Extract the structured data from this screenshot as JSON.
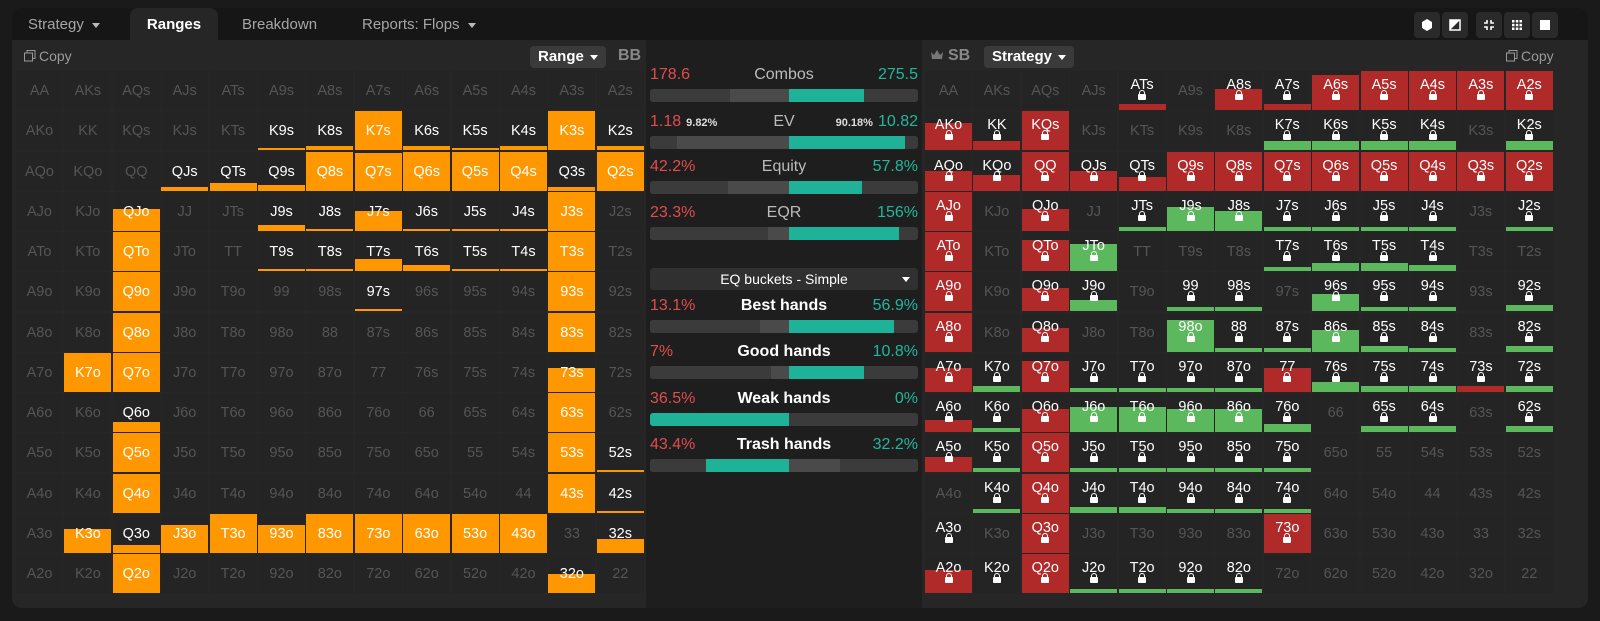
{
  "tabs": [
    {
      "label": "Strategy",
      "dropdown": true,
      "active": false
    },
    {
      "label": "Ranges",
      "dropdown": false,
      "active": true
    },
    {
      "label": "Breakdown",
      "dropdown": false,
      "active": false
    },
    {
      "label": "Reports: Flops",
      "dropdown": true,
      "active": false
    }
  ],
  "toolbar_icons": [
    "cube-icon",
    "half-square-icon",
    "compress-icon",
    "grid-icon",
    "square-icon"
  ],
  "colors": {
    "orange": "#ff9800",
    "red": "#b12a2a",
    "green": "#5cb85c",
    "teal": "#1eb398",
    "negative": "#e14d4d",
    "positive": "#22b79c"
  },
  "left_panel": {
    "copy_label": "Copy",
    "range_dropdown": "Range",
    "player": "BB",
    "hands": [
      [
        "AA",
        "AKs",
        "AQs",
        "AJs",
        "ATs",
        "A9s",
        "A8s",
        "A7s",
        "A6s",
        "A5s",
        "A4s",
        "A3s",
        "A2s"
      ],
      [
        "AKo",
        "KK",
        "KQs",
        "KJs",
        "KTs",
        "K9s",
        "K8s",
        "K7s",
        "K6s",
        "K5s",
        "K4s",
        "K3s",
        "K2s"
      ],
      [
        "AQo",
        "KQo",
        "QQ",
        "QJs",
        "QTs",
        "Q9s",
        "Q8s",
        "Q7s",
        "Q6s",
        "Q5s",
        "Q4s",
        "Q3s",
        "Q2s"
      ],
      [
        "AJo",
        "KJo",
        "QJo",
        "JJ",
        "JTs",
        "J9s",
        "J8s",
        "J7s",
        "J6s",
        "J5s",
        "J4s",
        "J3s",
        "J2s"
      ],
      [
        "ATo",
        "KTo",
        "QTo",
        "JTo",
        "TT",
        "T9s",
        "T8s",
        "T7s",
        "T6s",
        "T5s",
        "T4s",
        "T3s",
        "T2s"
      ],
      [
        "A9o",
        "K9o",
        "Q9o",
        "J9o",
        "T9o",
        "99",
        "98s",
        "97s",
        "96s",
        "95s",
        "94s",
        "93s",
        "92s"
      ],
      [
        "A8o",
        "K8o",
        "Q8o",
        "J8o",
        "T8o",
        "98o",
        "88",
        "87s",
        "86s",
        "85s",
        "84s",
        "83s",
        "82s"
      ],
      [
        "A7o",
        "K7o",
        "Q7o",
        "J7o",
        "T7o",
        "97o",
        "87o",
        "77",
        "76s",
        "75s",
        "74s",
        "73s",
        "72s"
      ],
      [
        "A6o",
        "K6o",
        "Q6o",
        "J6o",
        "T6o",
        "96o",
        "86o",
        "76o",
        "66",
        "65s",
        "64s",
        "63s",
        "62s"
      ],
      [
        "A5o",
        "K5o",
        "Q5o",
        "J5o",
        "T5o",
        "95o",
        "85o",
        "75o",
        "65o",
        "55",
        "54s",
        "53s",
        "52s"
      ],
      [
        "A4o",
        "K4o",
        "Q4o",
        "J4o",
        "T4o",
        "94o",
        "84o",
        "74o",
        "64o",
        "54o",
        "44",
        "43s",
        "42s"
      ],
      [
        "A3o",
        "K3o",
        "Q3o",
        "J3o",
        "T3o",
        "93o",
        "83o",
        "73o",
        "63o",
        "53o",
        "43o",
        "33",
        "32s"
      ],
      [
        "A2o",
        "K2o",
        "Q2o",
        "J2o",
        "T2o",
        "92o",
        "82o",
        "72o",
        "62o",
        "52o",
        "42o",
        "32o",
        "22"
      ]
    ],
    "frequencies": [
      [
        0,
        0,
        0,
        0,
        0,
        0,
        0,
        0,
        0,
        0,
        0,
        0,
        0
      ],
      [
        0,
        0,
        0,
        0,
        0,
        0.05,
        0.1,
        1,
        0.1,
        0.05,
        0.1,
        1,
        0.1
      ],
      [
        0,
        0,
        0,
        0.1,
        0.2,
        0.15,
        1,
        0.95,
        1,
        1,
        1,
        0.1,
        1
      ],
      [
        0,
        0,
        0.55,
        0,
        0,
        0.15,
        0.05,
        0.5,
        0.05,
        0.05,
        0.05,
        1,
        0
      ],
      [
        0,
        0,
        1,
        0,
        0,
        0.05,
        0.05,
        0.3,
        0.15,
        0.05,
        0.05,
        1,
        0
      ],
      [
        0,
        0,
        1,
        0,
        0,
        0,
        0,
        0.05,
        0,
        0,
        0,
        1,
        0
      ],
      [
        0,
        0,
        1,
        0,
        0,
        0,
        0,
        0,
        0,
        0,
        0,
        1,
        0
      ],
      [
        0,
        1,
        1,
        0,
        0,
        0,
        0,
        0,
        0,
        0,
        0,
        0.6,
        0
      ],
      [
        0,
        0,
        0.25,
        0,
        0,
        0,
        0,
        0,
        0,
        0,
        0,
        1,
        0
      ],
      [
        0,
        0,
        1,
        0,
        0,
        0,
        0,
        0,
        0,
        0,
        0,
        1,
        0.05
      ],
      [
        0,
        0,
        1,
        0,
        0,
        0,
        0,
        0,
        0,
        0,
        0,
        1,
        0.05
      ],
      [
        0,
        0.6,
        0.2,
        0.7,
        1,
        0.7,
        1,
        1,
        1,
        1,
        1,
        0,
        0.35
      ],
      [
        0,
        0,
        1,
        0,
        0,
        0,
        0,
        0,
        0,
        0,
        0,
        0.5,
        0
      ]
    ]
  },
  "middle_panel": {
    "stats": [
      {
        "name": "Combos",
        "left": "178.6",
        "right": "275.5",
        "bold": false,
        "segments": [
          [
            0,
            0.3,
            "#3b3b3b"
          ],
          [
            0.3,
            0.52,
            "#4a4a4a"
          ],
          [
            0.52,
            0.8,
            "#1eb398"
          ],
          [
            0.8,
            1,
            "#3b3b3b"
          ]
        ]
      },
      {
        "name": "EV",
        "left": "1.18",
        "left_pct": "9.82%",
        "right": "10.82",
        "right_pct": "90.18%",
        "bold": false,
        "segments": [
          [
            0,
            0.1,
            "#3b3b3b"
          ],
          [
            0.1,
            0.52,
            "#4a4a4a"
          ],
          [
            0.52,
            0.95,
            "#1eb398"
          ]
        ]
      },
      {
        "name": "Equity",
        "left": "42.2%",
        "right": "57.8%",
        "bold": false,
        "segments": [
          [
            0,
            0.29,
            "#3b3b3b"
          ],
          [
            0.29,
            0.52,
            "#4a4a4a"
          ],
          [
            0.52,
            0.79,
            "#1eb398"
          ]
        ]
      },
      {
        "name": "EQR",
        "left": "23.3%",
        "right": "156%",
        "bold": false,
        "segments": [
          [
            0,
            0.44,
            "#3b3b3b"
          ],
          [
            0.44,
            0.52,
            "#4a4a4a"
          ],
          [
            0.52,
            0.93,
            "#1eb398"
          ]
        ]
      }
    ],
    "eq_buckets": "EQ buckets - Simple",
    "buckets": [
      {
        "name": "Best hands",
        "left": "13.1%",
        "right": "56.9%",
        "bold": true,
        "segments": [
          [
            0,
            0.41,
            "#3b3b3b"
          ],
          [
            0.41,
            0.52,
            "#4a4a4a"
          ],
          [
            0.52,
            0.91,
            "#1eb398"
          ]
        ]
      },
      {
        "name": "Good hands",
        "left": "7%",
        "right": "10.8%",
        "bold": true,
        "segments": [
          [
            0,
            0.45,
            "#3b3b3b"
          ],
          [
            0.45,
            0.52,
            "#4a4a4a"
          ],
          [
            0.52,
            0.8,
            "#1eb398"
          ]
        ]
      },
      {
        "name": "Weak hands",
        "left": "36.5%",
        "right": "0%",
        "bold": true,
        "segments": [
          [
            0,
            0.52,
            "#1eb398"
          ],
          [
            0.52,
            1,
            "#3b3b3b"
          ]
        ]
      },
      {
        "name": "Trash hands",
        "left": "43.4%",
        "right": "32.2%",
        "bold": true,
        "segments": [
          [
            0,
            0.21,
            "#3b3b3b"
          ],
          [
            0.21,
            0.52,
            "#1eb398"
          ],
          [
            0.52,
            0.71,
            "#4a4a4a"
          ],
          [
            0.71,
            1,
            "#3b3b3b"
          ]
        ]
      }
    ]
  },
  "right_panel": {
    "player": "SB",
    "strategy_dropdown": "Strategy",
    "copy_label": "Copy",
    "hands": [
      [
        "AA",
        "AKs",
        "AQs",
        "AJs",
        "ATs",
        "A9s",
        "A8s",
        "A7s",
        "A6s",
        "A5s",
        "A4s",
        "A3s",
        "A2s"
      ],
      [
        "AKo",
        "KK",
        "KQs",
        "KJs",
        "KTs",
        "K9s",
        "K8s",
        "K7s",
        "K6s",
        "K5s",
        "K4s",
        "K3s",
        "K2s"
      ],
      [
        "AQo",
        "KQo",
        "QQ",
        "QJs",
        "QTs",
        "Q9s",
        "Q8s",
        "Q7s",
        "Q6s",
        "Q5s",
        "Q4s",
        "Q3s",
        "Q2s"
      ],
      [
        "AJo",
        "KJo",
        "QJo",
        "JJ",
        "JTs",
        "J9s",
        "J8s",
        "J7s",
        "J6s",
        "J5s",
        "J4s",
        "J3s",
        "J2s"
      ],
      [
        "ATo",
        "KTo",
        "QTo",
        "JTo",
        "TT",
        "T9s",
        "T8s",
        "T7s",
        "T6s",
        "T5s",
        "T4s",
        "T3s",
        "T2s"
      ],
      [
        "A9o",
        "K9o",
        "Q9o",
        "J9o",
        "T9o",
        "99",
        "98s",
        "97s",
        "96s",
        "95s",
        "94s",
        "93s",
        "92s"
      ],
      [
        "A8o",
        "K8o",
        "Q8o",
        "J8o",
        "T8o",
        "98o",
        "88",
        "87s",
        "86s",
        "85s",
        "84s",
        "83s",
        "82s"
      ],
      [
        "A7o",
        "K7o",
        "Q7o",
        "J7o",
        "T7o",
        "97o",
        "87o",
        "77",
        "76s",
        "75s",
        "74s",
        "73s",
        "72s"
      ],
      [
        "A6o",
        "K6o",
        "Q6o",
        "J6o",
        "T6o",
        "96o",
        "86o",
        "76o",
        "66",
        "65s",
        "64s",
        "63s",
        "62s"
      ],
      [
        "A5o",
        "K5o",
        "Q5o",
        "J5o",
        "T5o",
        "95o",
        "85o",
        "75o",
        "65o",
        "55",
        "54s",
        "53s",
        "52s"
      ],
      [
        "A4o",
        "K4o",
        "Q4o",
        "J4o",
        "T4o",
        "94o",
        "84o",
        "74o",
        "64o",
        "54o",
        "44",
        "43s",
        "42s"
      ],
      [
        "A3o",
        "K3o",
        "Q3o",
        "J3o",
        "T3o",
        "93o",
        "83o",
        "73o",
        "63o",
        "53o",
        "43o",
        "33",
        "32s"
      ],
      [
        "A2o",
        "K2o",
        "Q2o",
        "J2o",
        "T2o",
        "92o",
        "82o",
        "72o",
        "62o",
        "52o",
        "42o",
        "32o",
        "22"
      ]
    ],
    "cells": [
      [
        "",
        "",
        "",
        "",
        "r:0.15",
        "",
        "r:0.55",
        "r:0.15",
        "r:0.9",
        "r:1",
        "r:1",
        "r:1",
        "r:1"
      ],
      [
        "r:0.7",
        "r:0.25",
        "r:1",
        "",
        "",
        "",
        "",
        "g:0.25",
        "g:0.25",
        "g:0.25",
        "g:0.25",
        "",
        "g:0.25"
      ],
      [
        "r:0.5",
        "r:0.4",
        "r:1",
        "r:0.5",
        "r:0.35",
        "r:1",
        "r:1",
        "r:1",
        "r:1",
        "r:1",
        "r:1",
        "r:1",
        "r:1"
      ],
      [
        "r:1",
        "",
        "r:0.55",
        "",
        "g:0.1",
        "g:0.6",
        "g:0.5",
        "g:0.1",
        "g:0.1",
        "g:0.1",
        "g:0.1",
        "",
        "g:0.1"
      ],
      [
        "r:1",
        "",
        "r:0.8",
        "g:0.7",
        "",
        "",
        "",
        "g:0.1",
        "g:0.2",
        "g:0.2",
        "g:0.15",
        "",
        ""
      ],
      [
        "r:1",
        "",
        "r:0.6",
        "g:0.3",
        "",
        "g:0.1",
        "g:0.1",
        "",
        "g:0.45",
        "g:0.1",
        "g:0.1",
        "",
        "g:0.15"
      ],
      [
        "r:1",
        "",
        "r:0.6",
        "",
        "",
        "g:0.8",
        "g:0.1",
        "g:0.1",
        "g:0.55",
        "g:0.15",
        "g:0.1",
        "",
        "g:0.15"
      ],
      [
        "r:0.6",
        "g:0.15",
        "r:0.8",
        "g:0.1",
        "g:0.1",
        "g:0.1",
        "g:0.1",
        "r:0.6",
        "g:0.25",
        "g:0.15",
        "g:0.15",
        "r:0.15",
        "g:0.15"
      ],
      [
        "r:0.3",
        "g:0.1",
        "r:0.6",
        "g:0.65",
        "g:0.65",
        "g:0.6",
        "g:0.6",
        "g:0.2",
        "",
        "g:0.15",
        "g:0.15",
        "",
        "g:0.15"
      ],
      [
        "r:0.4",
        "g:0.1",
        "r:1",
        "g:0.1",
        "g:0.1",
        "g:0.1",
        "g:0.1",
        "g:0.1",
        "",
        "",
        "",
        "",
        ""
      ],
      [
        "",
        "g:0.1",
        "r:1",
        "g:0.15",
        "g:0.15",
        "g:0.1",
        "g:0.1",
        "g:0.1",
        "",
        "",
        "",
        "",
        ""
      ],
      [
        "w",
        "",
        "r:1",
        "",
        "",
        "",
        "",
        "r:1",
        "",
        "",
        "",
        "",
        ""
      ],
      [
        "r:0.6",
        "w",
        "r:1",
        "g:0.1",
        "g:0.1",
        "g:0.1",
        "g:0.1",
        "",
        "",
        "",
        "",
        "",
        ""
      ]
    ]
  }
}
